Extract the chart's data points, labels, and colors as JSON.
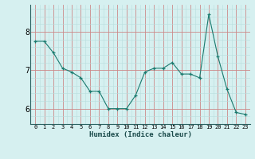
{
  "x": [
    0,
    1,
    2,
    3,
    4,
    5,
    6,
    7,
    8,
    9,
    10,
    11,
    12,
    13,
    14,
    15,
    16,
    17,
    18,
    19,
    20,
    21,
    22,
    23
  ],
  "y": [
    7.75,
    7.75,
    7.45,
    7.05,
    6.95,
    6.8,
    6.45,
    6.45,
    6.0,
    6.0,
    6.0,
    6.35,
    6.95,
    7.05,
    7.05,
    7.2,
    6.9,
    6.9,
    6.8,
    8.45,
    7.35,
    6.5,
    5.9,
    5.85
  ],
  "xlabel": "Humidex (Indice chaleur)",
  "yticks": [
    6,
    7,
    8
  ],
  "xtick_labels": [
    "0",
    "1",
    "2",
    "3",
    "4",
    "5",
    "6",
    "7",
    "8",
    "9",
    "10",
    "11",
    "12",
    "13",
    "14",
    "15",
    "16",
    "17",
    "18",
    "19",
    "20",
    "21",
    "22",
    "23"
  ],
  "ylim": [
    5.6,
    8.7
  ],
  "xlim": [
    -0.5,
    23.5
  ],
  "line_color": "#1a7a6e",
  "marker_color": "#1a7a6e",
  "bg_color": "#d6f0f0",
  "grid_color_major": "#cc8888",
  "grid_color_minor": "#b8dede",
  "title": ""
}
